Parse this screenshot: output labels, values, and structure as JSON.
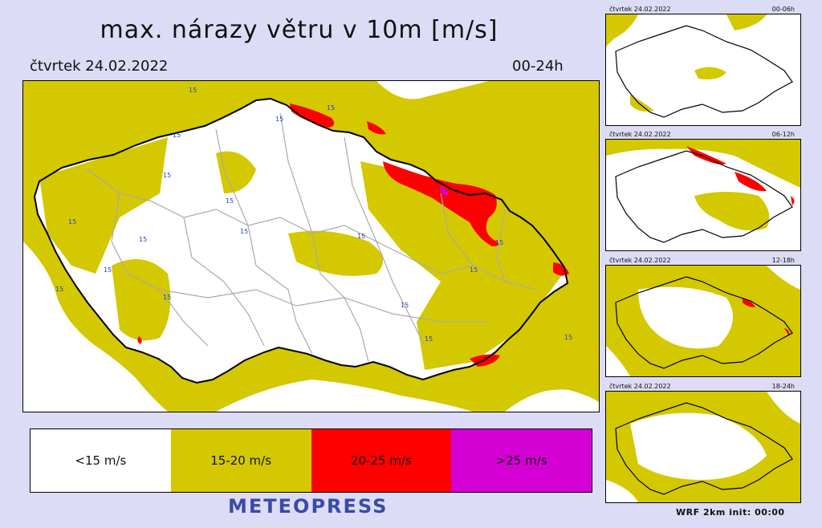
{
  "title": "max. nárazy větru v 10m [m/s]",
  "date": "čtvrtek 24.02.2022",
  "range": "00-24h",
  "contour_label": "15",
  "legend": [
    {
      "label": "<15 m/s",
      "color": "#ffffff"
    },
    {
      "label": "15-20 m/s",
      "color": "#d4c800"
    },
    {
      "label": "20-25 m/s",
      "color": "#ff0000"
    },
    {
      "label": ">25 m/s",
      "color": "#d400d4"
    }
  ],
  "brand": "METEOPRESS",
  "thumbnails": [
    {
      "date": "čtvrtek 24.02.2022",
      "range": "00-06h"
    },
    {
      "date": "čtvrtek 24.02.2022",
      "range": "06-12h"
    },
    {
      "date": "čtvrtek 24.02.2022",
      "range": "12-18h"
    },
    {
      "date": "čtvrtek 24.02.2022",
      "range": "18-24h"
    }
  ],
  "footer": "WRF 2km init: 00:00",
  "colors": {
    "background": "#dcdcf6",
    "yellow": "#d4c800",
    "red": "#ff0000",
    "magenta": "#d400d4",
    "brand": "#3a4aa6",
    "border": "#000000",
    "district": "#aaaaaa"
  }
}
